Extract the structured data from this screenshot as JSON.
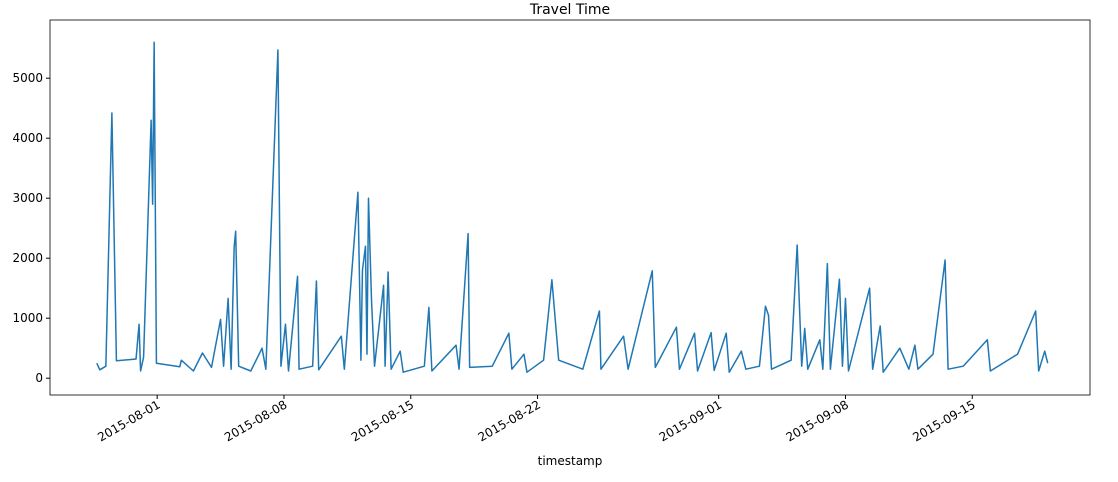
{
  "chart_data": {
    "type": "line",
    "title": "Travel Time",
    "xlabel": "timestamp",
    "color": "#1f77b4",
    "x": [
      "2015-07-28T16:00",
      "2015-07-28T20:00",
      "2015-07-29T04:00",
      "2015-07-29T12:00",
      "2015-07-29T18:00",
      "2015-07-30T20:00",
      "2015-07-31T00:00",
      "2015-07-31T02:00",
      "2015-07-31T06:00",
      "2015-07-31T16:00",
      "2015-07-31T18:00",
      "2015-07-31T20:00",
      "2015-07-31T23:00",
      "2015-08-02T06:00",
      "2015-08-02T08:00",
      "2015-08-03T00:00",
      "2015-08-03T12:00",
      "2015-08-04T00:00",
      "2015-08-04T12:00",
      "2015-08-04T16:00",
      "2015-08-04T22:00",
      "2015-08-05T02:00",
      "2015-08-05T06:00",
      "2015-08-05T08:00",
      "2015-08-05T12:00",
      "2015-08-06T04:00",
      "2015-08-06T19:00",
      "2015-08-07T00:00",
      "2015-08-07T16:00",
      "2015-08-07T20:00",
      "2015-08-08T02:00",
      "2015-08-08T06:00",
      "2015-08-08T18:00",
      "2015-08-08T20:00",
      "2015-08-09T14:00",
      "2015-08-09T19:00",
      "2015-08-09T22:00",
      "2015-08-11T04:00",
      "2015-08-11T08:00",
      "2015-08-12T02:00",
      "2015-08-12T06:00",
      "2015-08-12T08:00",
      "2015-08-12T12:00",
      "2015-08-12T14:00",
      "2015-08-12T16:00",
      "2015-08-12T20:00",
      "2015-08-13T00:00",
      "2015-08-13T12:00",
      "2015-08-13T14:00",
      "2015-08-13T18:00",
      "2015-08-13T22:00",
      "2015-08-14T10:00",
      "2015-08-14T14:00",
      "2015-08-15T18:00",
      "2015-08-16T00:00",
      "2015-08-16T04:00",
      "2015-08-17T12:00",
      "2015-08-17T16:00",
      "2015-08-18T04:00",
      "2015-08-18T06:00",
      "2015-08-19T12:00",
      "2015-08-20T10:00",
      "2015-08-20T14:00",
      "2015-08-21T06:00",
      "2015-08-21T10:00",
      "2015-08-22T08:00",
      "2015-08-22T19:00",
      "2015-08-23T04:00",
      "2015-08-24T12:00",
      "2015-08-25T10:00",
      "2015-08-25T12:00",
      "2015-08-26T18:00",
      "2015-08-27T00:00",
      "2015-08-28T08:00",
      "2015-08-28T12:00",
      "2015-08-29T16:00",
      "2015-08-29T20:00",
      "2015-08-30T16:00",
      "2015-08-30T20:00",
      "2015-08-31T14:00",
      "2015-08-31T18:00",
      "2015-09-01T10:00",
      "2015-09-01T14:00",
      "2015-09-02T06:00",
      "2015-09-02T12:00",
      "2015-09-03T06:00",
      "2015-09-03T14:00",
      "2015-09-03T18:00",
      "2015-09-03T22:00",
      "2015-09-05T00:00",
      "2015-09-05T08:00",
      "2015-09-05T14:00",
      "2015-09-05T18:00",
      "2015-09-05T22:00",
      "2015-09-06T14:00",
      "2015-09-06T18:00",
      "2015-09-07T00:00",
      "2015-09-07T04:00",
      "2015-09-07T16:00",
      "2015-09-07T20:00",
      "2015-09-08T00:00",
      "2015-09-08T04:00",
      "2015-09-09T08:00",
      "2015-09-09T12:00",
      "2015-09-09T22:00",
      "2015-09-10T02:00",
      "2015-09-11T00:00",
      "2015-09-11T12:00",
      "2015-09-11T20:00",
      "2015-09-12T00:00",
      "2015-09-12T20:00",
      "2015-09-13T12:00",
      "2015-09-13T16:00",
      "2015-09-14T12:00",
      "2015-09-15T20:00",
      "2015-09-16T00:00",
      "2015-09-17T12:00",
      "2015-09-18T12:00",
      "2015-09-18T16:00",
      "2015-09-19T00:00",
      "2015-09-19T04:00"
    ],
    "values": [
      250,
      140,
      200,
      4420,
      290,
      320,
      900,
      120,
      350,
      4300,
      2900,
      5600,
      250,
      190,
      300,
      120,
      420,
      180,
      980,
      200,
      1330,
      150,
      2180,
      2450,
      200,
      120,
      500,
      150,
      5470,
      200,
      900,
      120,
      1700,
      150,
      200,
      1620,
      140,
      700,
      150,
      3100,
      300,
      1800,
      2200,
      400,
      3000,
      1300,
      200,
      1550,
      200,
      1770,
      150,
      450,
      100,
      200,
      1180,
      120,
      550,
      150,
      2410,
      180,
      200,
      750,
      150,
      400,
      100,
      300,
      1640,
      300,
      150,
      1120,
      150,
      700,
      150,
      1790,
      180,
      850,
      150,
      750,
      120,
      760,
      130,
      750,
      100,
      450,
      150,
      200,
      1200,
      1050,
      150,
      300,
      2220,
      200,
      830,
      150,
      640,
      150,
      1910,
      150,
      1650,
      200,
      1330,
      120,
      1500,
      150,
      870,
      100,
      500,
      150,
      550,
      150,
      400,
      1970,
      150,
      200,
      640,
      120,
      400,
      1120,
      120,
      450,
      250
    ],
    "xlim": [
      "2015-07-26T02:00",
      "2015-09-21T12:00"
    ],
    "xticks": [
      "2015-08-01",
      "2015-08-08",
      "2015-08-15",
      "2015-08-22",
      "2015-09-01",
      "2015-09-08",
      "2015-09-15"
    ],
    "ylim": [
      -280,
      5970
    ],
    "yticks": [
      0,
      1000,
      2000,
      3000,
      4000,
      5000
    ]
  }
}
